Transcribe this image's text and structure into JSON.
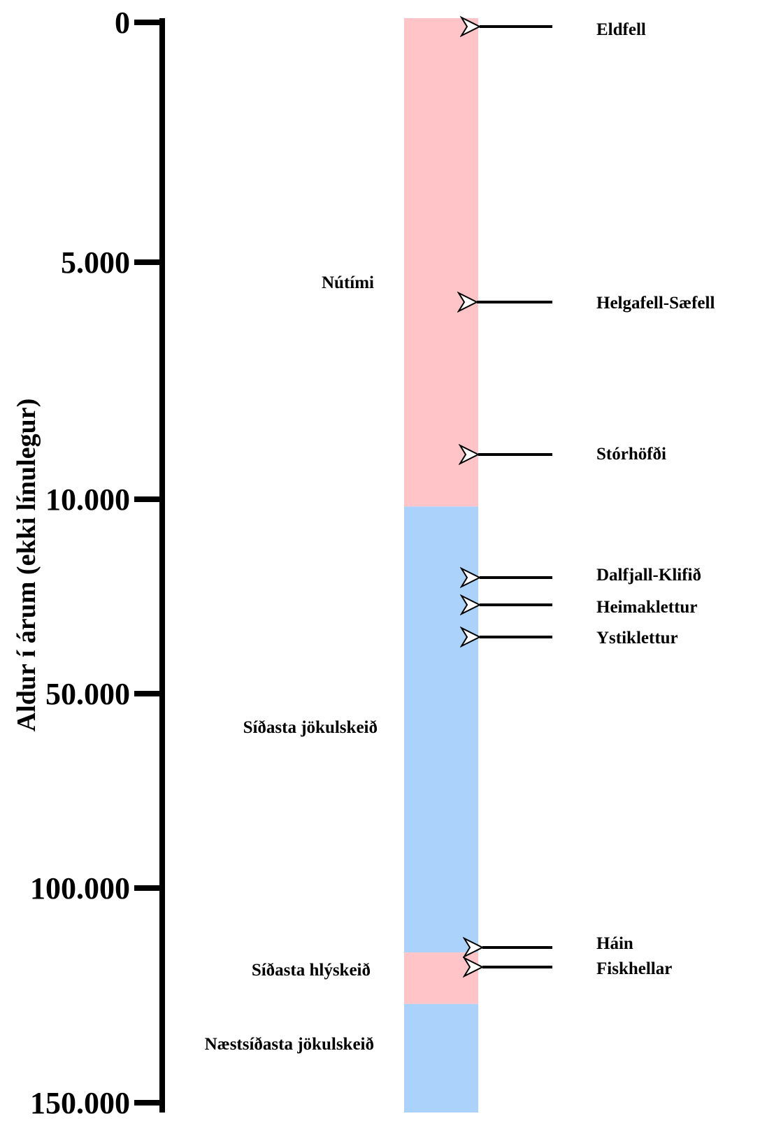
{
  "chart_data": {
    "type": "stratigraphic-column",
    "ylabel": "Aldur í árum (ekki línulegur)",
    "y_ticks": [
      "0",
      "5.000",
      "10.000",
      "50.000",
      "100.000",
      "150.000"
    ],
    "periods": [
      {
        "name": "Nútími",
        "start": 0,
        "end": 11500,
        "color": "#ffc4c8"
      },
      {
        "name": "Síðasta jökulskeið",
        "start": 11500,
        "end": 115000,
        "color": "#aad2fa"
      },
      {
        "name": "Síðasta hlýskeið",
        "start": 115000,
        "end": 127000,
        "color": "#ffc4c8"
      },
      {
        "name": "Næstsíðasta jökulskeið",
        "start": 127000,
        "end": 150000,
        "color": "#aad2fa"
      }
    ],
    "events": [
      {
        "name": "Eldfell",
        "age": 50
      },
      {
        "name": "Helgafell-Sæfell",
        "age": 5900
      },
      {
        "name": "Stórhöfði",
        "age": 9100
      },
      {
        "name": "Dalfjall-Klifið",
        "age": 12800
      },
      {
        "name": "Heimaklettur",
        "age": 16000
      },
      {
        "name": "Ystiklettur",
        "age": 22000
      },
      {
        "name": "Háin",
        "age": 115500
      },
      {
        "name": "Fiskhellar",
        "age": 120500
      }
    ]
  }
}
